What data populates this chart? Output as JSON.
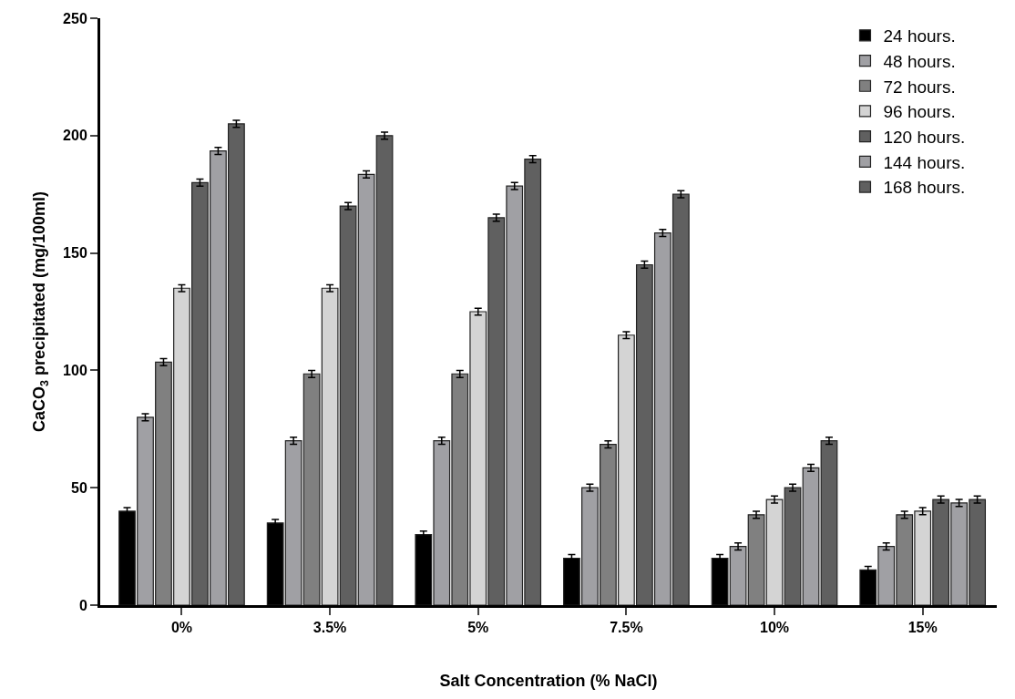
{
  "chart_data": {
    "type": "bar",
    "xlabel": "Salt Concentration (% NaCl)",
    "ylabel": "CaCO$_{3}$ precipitated (mg/100ml)",
    "categories": [
      "0%",
      "3.5%",
      "5%",
      "7.5%",
      "10%",
      "15%"
    ],
    "series": [
      {
        "name": "24 hours.",
        "color": "#000000",
        "values": [
          40,
          35,
          30,
          20,
          20,
          15
        ],
        "errors": [
          1.5,
          1.5,
          1.5,
          1.5,
          1.5,
          1.5
        ]
      },
      {
        "name": "48 hours.",
        "color": "#a0a0a4",
        "values": [
          80,
          70,
          70,
          50,
          25,
          25
        ],
        "errors": [
          1.5,
          1.5,
          1.5,
          1.5,
          1.5,
          1.5
        ]
      },
      {
        "name": "72 hours.",
        "color": "#808080",
        "values": [
          103.5,
          98.5,
          98.5,
          68.5,
          38.5,
          38.5
        ],
        "errors": [
          1.5,
          1.5,
          1.5,
          1.5,
          1.5,
          1.5
        ]
      },
      {
        "name": "96 hours.",
        "color": "#d4d4d4",
        "values": [
          135,
          135,
          125,
          115,
          45,
          40
        ],
        "errors": [
          1.5,
          1.5,
          1.5,
          1.5,
          1.5,
          1.5
        ]
      },
      {
        "name": "120 hours.",
        "color": "#606060",
        "values": [
          180,
          170,
          165,
          145,
          50,
          45
        ],
        "errors": [
          1.5,
          1.5,
          1.5,
          1.5,
          1.5,
          1.5
        ]
      },
      {
        "name": "144 hours.",
        "color": "#a0a0a4",
        "values": [
          193.5,
          183.5,
          178.5,
          158.5,
          58.5,
          43.5
        ],
        "errors": [
          1.5,
          1.5,
          1.5,
          1.5,
          1.5,
          1.5
        ]
      },
      {
        "name": "168 hours.",
        "color": "#606060",
        "values": [
          205,
          200,
          190,
          175,
          70,
          45
        ],
        "errors": [
          1.5,
          1.5,
          1.5,
          1.5,
          1.5,
          1.5
        ]
      }
    ],
    "ylim": [
      0,
      250
    ],
    "yticks": [
      0,
      50,
      100,
      150,
      200,
      250
    ],
    "legend": "top right"
  }
}
